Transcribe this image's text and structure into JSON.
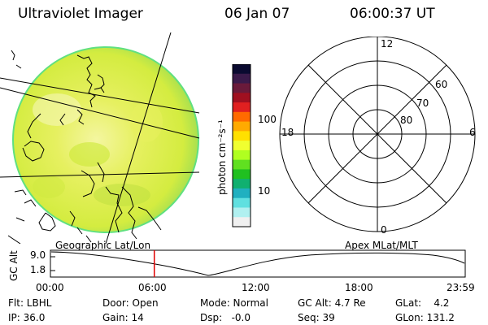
{
  "header": {
    "title": "Ultraviolet Imager",
    "date": "06 Jan 07",
    "time": "06:00:37 UT"
  },
  "colorbar": {
    "unit_label": "photon cm⁻²s⁻¹",
    "ticks": [
      "100",
      "10"
    ],
    "colors_top_to_bottom": [
      "#0a0a30",
      "#3a1a4a",
      "#6a1a3a",
      "#a01020",
      "#e02020",
      "#ff6a00",
      "#ffaa00",
      "#ffe000",
      "#f0ff30",
      "#b0ff20",
      "#60e020",
      "#20c020",
      "#10b070",
      "#20b0c0",
      "#60e0e0",
      "#b0f0f0",
      "#f0f0f0"
    ]
  },
  "polar_plot": {
    "mlt_labels": [
      "12",
      "18",
      "6",
      "0"
    ],
    "mlat_labels": [
      "60",
      "70",
      "80"
    ]
  },
  "timeline": {
    "left_label": "Geographic Lat/Lon",
    "right_label": "Apex MLat/MLT",
    "axis_label": "GC Alt",
    "y_ticks": [
      "9.0",
      "1.8"
    ],
    "x_ticks": [
      "00:00",
      "06:00",
      "12:00",
      "18:00",
      "23:59"
    ],
    "current_time_fraction": 0.2504
  },
  "status": {
    "flt": "Flt: LBHL",
    "ip": "IP: 36.0",
    "door": "Door: Open",
    "gain": "Gain: 14",
    "mode": "Mode: Normal",
    "dsp": "Dsp:   -0.0",
    "gcalt": "GC Alt: 4.7 Re",
    "seq": "Seq: 39",
    "glat": "GLat:    4.2",
    "glon": "GLon: 131.2"
  },
  "colors": {
    "disk_fill": "#dcef40",
    "disk_edge": "#60e080",
    "current_time_marker": "#e00000"
  }
}
